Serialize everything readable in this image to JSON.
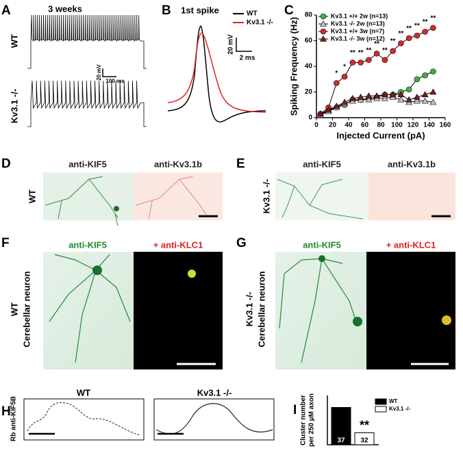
{
  "panels": {
    "A": {
      "label": "A",
      "title": "3 weeks",
      "rows": [
        "WT",
        "Kv3.1 -/-"
      ],
      "scale": [
        "20 mV",
        "100 ms"
      ]
    },
    "B": {
      "label": "B",
      "title": "1st spike",
      "legend": [
        "WT",
        "Kv3.1 -/-"
      ],
      "scale": [
        "20 mV",
        "2 ms"
      ]
    },
    "C": {
      "label": "C"
    },
    "D": {
      "label": "D",
      "columns": [
        "anti-KIF5",
        "anti-Kv3.1b"
      ],
      "row": "WT"
    },
    "E": {
      "label": "E",
      "columns": [
        "anti-KIF5",
        "anti-Kv3.1b"
      ],
      "row": "Kv3.1 -/-"
    },
    "F": {
      "label": "F",
      "columns": [
        "anti-KIF5",
        "+ anti-KLC1"
      ],
      "rows": [
        "WT",
        "Cerebellar neuron"
      ]
    },
    "G": {
      "label": "G",
      "columns": [
        "anti-KIF5",
        "+ anti-KLC1"
      ],
      "rows": [
        "Kv3.1 -/-",
        "Cerebellar neuron"
      ]
    },
    "H": {
      "label": "H",
      "ylabel": "Rb anti-KIF5B",
      "columns": [
        "WT",
        "Kv3.1 -/-"
      ]
    },
    "I": {
      "label": "I"
    }
  },
  "chart_data": [
    {
      "type": "line",
      "xlabel": "Injected Current (pA)",
      "ylabel": "Spiking Frequency (Hz)",
      "x": [
        5,
        15,
        25,
        35,
        45,
        55,
        65,
        75,
        85,
        95,
        105,
        115,
        125,
        135,
        145
      ],
      "series": [
        {
          "name": "Kv3.1 +/+ 2w  (n=13)",
          "color": "#3cb043",
          "marker": "circle",
          "values": [
            2,
            6,
            8,
            10,
            14,
            14,
            15,
            16,
            18,
            18,
            20,
            22,
            30,
            33,
            36
          ]
        },
        {
          "name": "Kv3.1 -/-  2w  (n=13)",
          "color": "#bdbdbd",
          "marker": "triangle",
          "values": [
            2,
            5,
            8,
            11,
            13,
            14,
            14,
            15,
            15,
            16,
            14,
            12,
            13,
            13,
            12
          ]
        },
        {
          "name": "Kv3.1 +/+ 3w  (n=7)",
          "color": "#d42a2a",
          "marker": "circle",
          "values": [
            3,
            8,
            27,
            32,
            43,
            43,
            45,
            50,
            45,
            52,
            58,
            62,
            64,
            67,
            70
          ]
        },
        {
          "name": "Kv3.1 -/-  3w  (n=12)",
          "color": "#7a1c1c",
          "marker": "triangle",
          "values": [
            3,
            6,
            9,
            12,
            15,
            16,
            17,
            17,
            18,
            18,
            18,
            14,
            16,
            18,
            20
          ]
        }
      ],
      "xlim": [
        0,
        160
      ],
      "xticks": [
        0,
        20,
        40,
        60,
        80,
        100,
        120,
        140,
        160
      ],
      "ylim": [
        0,
        80
      ],
      "yticks": [
        0,
        20,
        40,
        60,
        80
      ],
      "legend": "top-left",
      "annotations": [
        {
          "x": 25,
          "label": "*"
        },
        {
          "x": 35,
          "label": "*"
        },
        {
          "x": 45,
          "label": "**"
        },
        {
          "x": 55,
          "label": "**"
        },
        {
          "x": 65,
          "label": "**"
        },
        {
          "x": 75,
          "label": "**"
        },
        {
          "x": 85,
          "label": "**"
        },
        {
          "x": 95,
          "label": "**"
        },
        {
          "x": 105,
          "label": "**"
        },
        {
          "x": 115,
          "label": "**"
        },
        {
          "x": 125,
          "label": "**"
        },
        {
          "x": 135,
          "label": "**"
        },
        {
          "x": 145,
          "label": "**"
        }
      ]
    },
    {
      "type": "bar",
      "ylabel": [
        "Cluster number",
        "per 250 µM axon"
      ],
      "categories": [
        "WT",
        "Kv3.1 -/-"
      ],
      "values": [
        53,
        17
      ],
      "colors": [
        "#000000",
        "#ffffff"
      ],
      "n_labels": [
        "37",
        "32"
      ],
      "significance": "**",
      "ylim": [
        0,
        70
      ],
      "legend": "top-right"
    }
  ]
}
